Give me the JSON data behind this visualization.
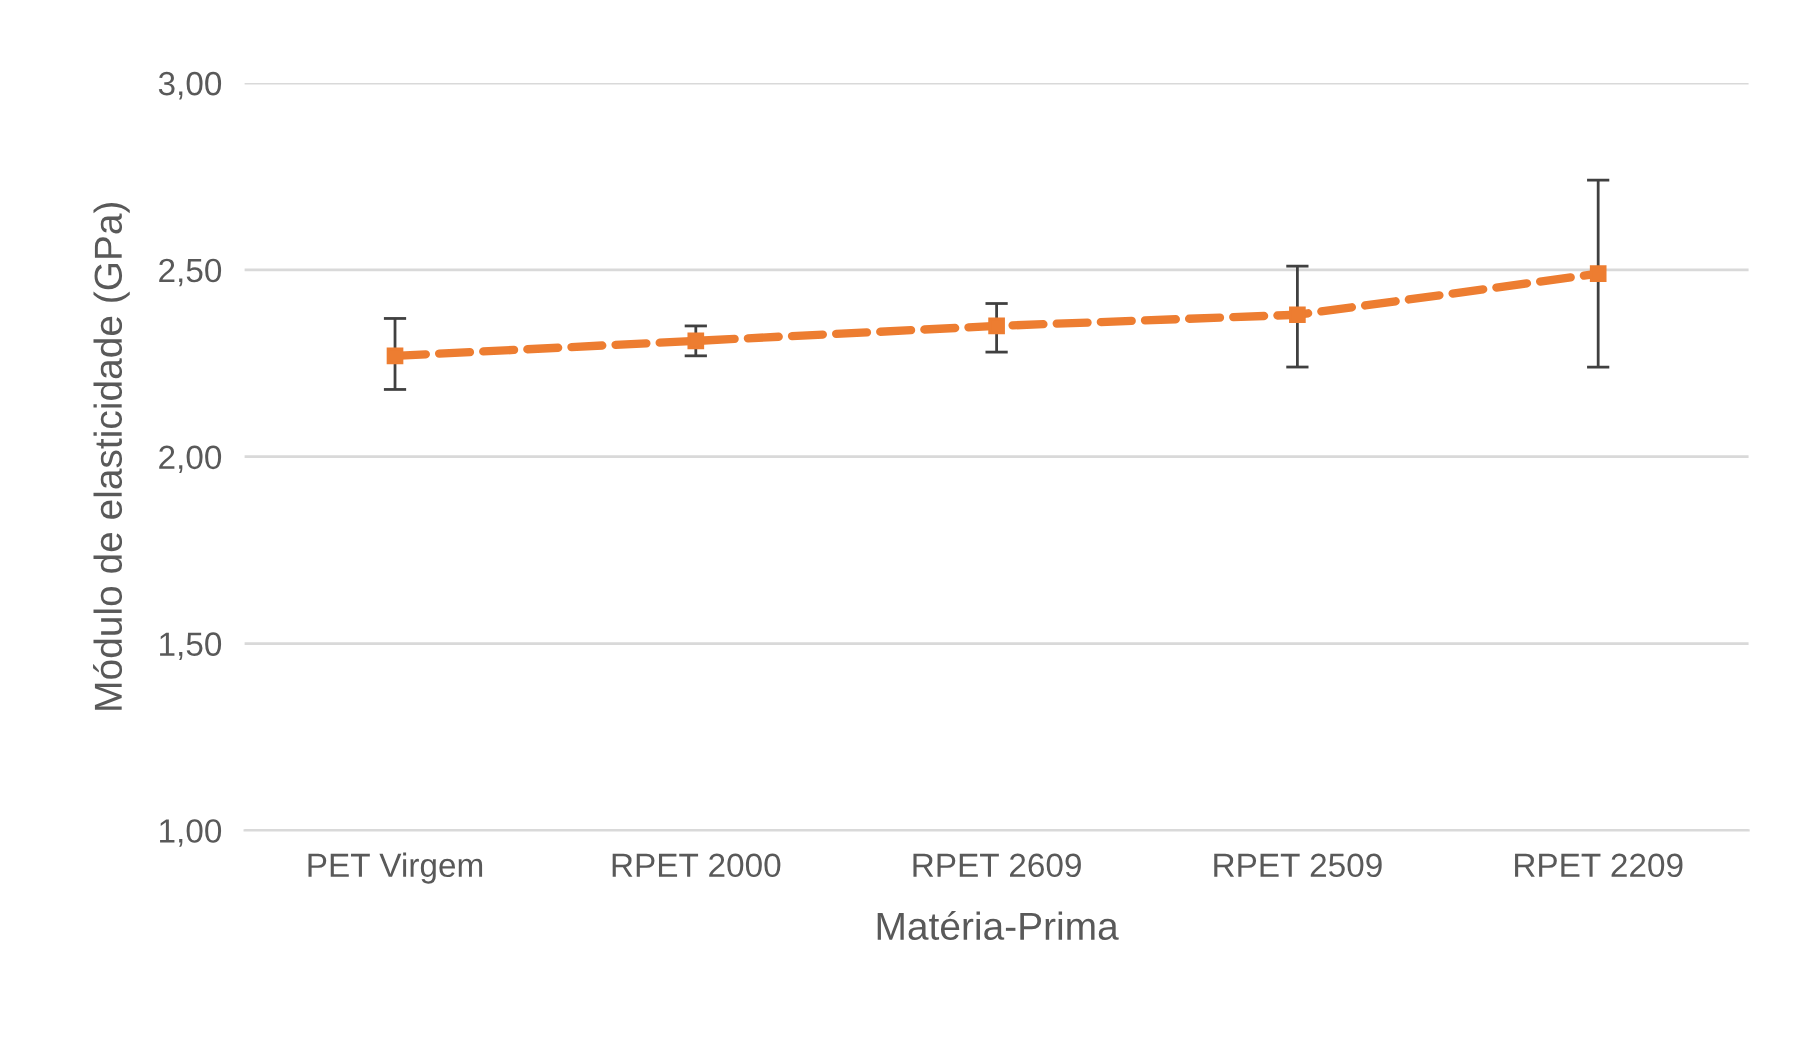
{
  "chart_data": {
    "type": "line",
    "xlabel": "Matéria-Prima",
    "ylabel": "Módulo de elasticidade (GPa)",
    "categories": [
      "PET Virgem",
      "RPET 2000",
      "RPET 2609",
      "RPET 2509",
      "RPET 2209"
    ],
    "series": [
      {
        "color": "#ed7d31",
        "values": [
          2.27,
          2.31,
          2.35,
          2.38,
          2.49
        ],
        "errors": [
          [
            2.18,
            2.37
          ],
          [
            2.27,
            2.35
          ],
          [
            2.28,
            2.41
          ],
          [
            2.24,
            2.51
          ],
          [
            2.24,
            2.74
          ]
        ]
      }
    ],
    "ylim": [
      1.0,
      3.0
    ],
    "yticks": [
      {
        "value": 1.0,
        "label": "1,00"
      },
      {
        "value": 1.5,
        "label": "1,50"
      },
      {
        "value": 2.0,
        "label": "2,00"
      },
      {
        "value": 2.5,
        "label": "2,50"
      },
      {
        "value": 3.0,
        "label": "3,00"
      }
    ],
    "grid": "y",
    "marker": "square",
    "line_style": "dashed"
  }
}
